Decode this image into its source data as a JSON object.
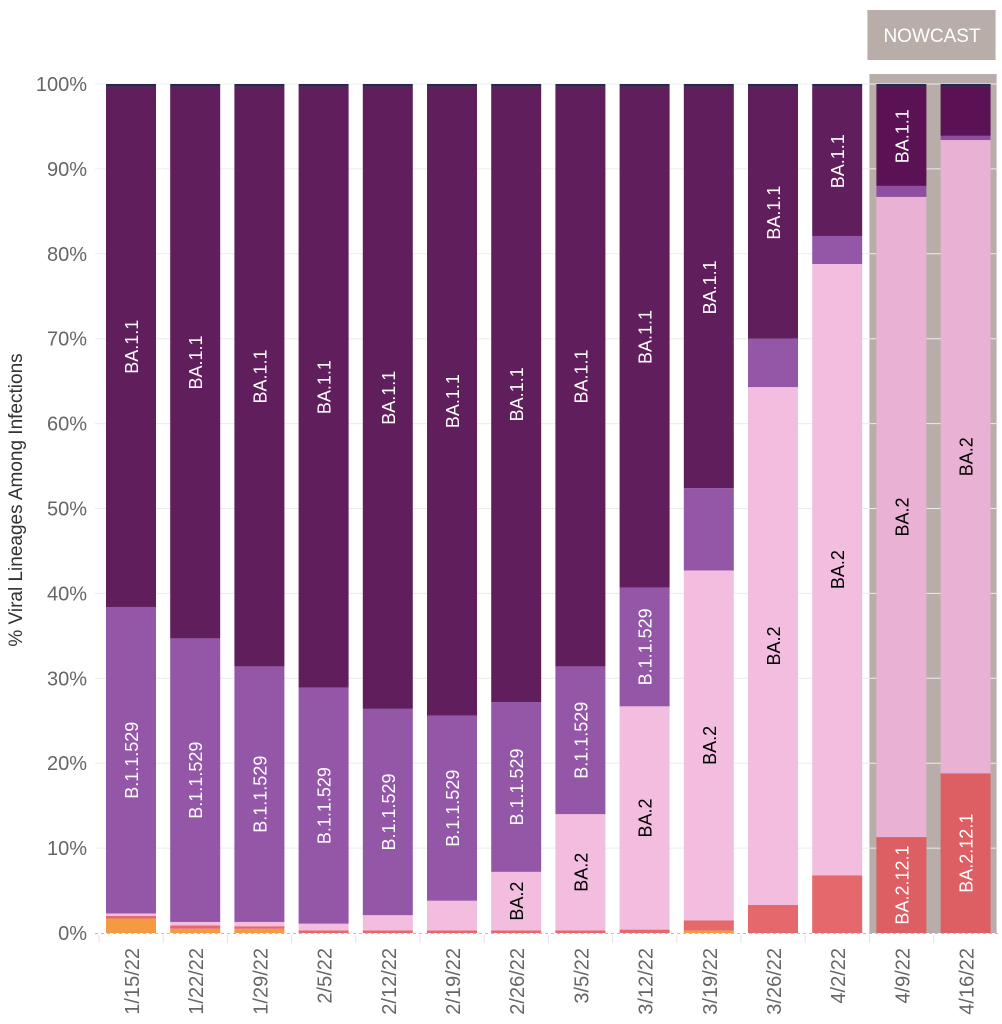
{
  "chart_data": {
    "type": "bar",
    "stacked": true,
    "title": "",
    "xlabel": "",
    "ylabel": "% Viral Lineages Among Infections",
    "ylim": [
      0,
      100
    ],
    "y_ticks": [
      "0%",
      "10%",
      "20%",
      "30%",
      "40%",
      "50%",
      "60%",
      "70%",
      "80%",
      "90%",
      "100%"
    ],
    "grid": true,
    "categories": [
      "1/15/22",
      "1/22/22",
      "1/29/22",
      "2/5/22",
      "2/12/22",
      "2/19/22",
      "2/26/22",
      "3/5/22",
      "3/12/22",
      "3/19/22",
      "3/26/22",
      "4/2/22",
      "4/9/22",
      "4/16/22"
    ],
    "nowcast": {
      "label": "NOWCAST",
      "categories": [
        "4/9/22",
        "4/16/22"
      ],
      "color": "#b9ada9"
    },
    "series": [
      {
        "name": "Other (orange)",
        "color": "#f39a43",
        "label_color": "#ffffff",
        "values": [
          1.7,
          0.5,
          0.5,
          0.0,
          0.0,
          0.0,
          0.0,
          0.0,
          0.0,
          0.3,
          0.0,
          0.0,
          0.0,
          0.0
        ],
        "labels": [
          "",
          "",
          "",
          "",
          "",
          "",
          "",
          "",
          "",
          "",
          "",
          "",
          "",
          ""
        ]
      },
      {
        "name": "BA.2.12.1",
        "color": "#e4686c",
        "label_color": "#ffffff",
        "values": [
          0.3,
          0.4,
          0.3,
          0.3,
          0.3,
          0.3,
          0.3,
          0.3,
          0.4,
          1.2,
          3.3,
          6.8,
          11.3,
          18.8
        ],
        "labels": [
          "",
          "",
          "",
          "",
          "",
          "",
          "",
          "",
          "",
          "",
          "",
          "",
          "BA.2.12.1",
          "BA.2.12.1"
        ]
      },
      {
        "name": "BA.2",
        "color": "#f2bddf",
        "label_color": "#000000",
        "values": [
          0.3,
          0.4,
          0.5,
          0.8,
          1.8,
          3.5,
          6.9,
          13.7,
          26.3,
          41.2,
          61.0,
          72.0,
          75.4,
          74.6
        ],
        "labels": [
          "",
          "",
          "",
          "",
          "",
          "",
          "BA.2",
          "BA.2",
          "BA.2",
          "BA.2",
          "BA.2",
          "BA.2",
          "BA.2",
          "BA.2"
        ]
      },
      {
        "name": "B.1.1.529",
        "color": "#9457a8",
        "label_color": "#ffffff",
        "values": [
          36.1,
          33.4,
          30.1,
          27.8,
          24.3,
          21.8,
          20.0,
          17.4,
          14.0,
          9.7,
          5.7,
          3.3,
          1.3,
          0.5
        ],
        "labels": [
          "B.1.1.529",
          "B.1.1.529",
          "B.1.1.529",
          "B.1.1.529",
          "B.1.1.529",
          "B.1.1.529",
          "B.1.1.529",
          "B.1.1.529",
          "B.1.1.529",
          "",
          "",
          "",
          "",
          ""
        ]
      },
      {
        "name": "BA.1.1",
        "color": "#611e5c",
        "label_color": "#ffffff",
        "values": [
          61.3,
          65.0,
          68.3,
          70.8,
          73.3,
          74.1,
          72.5,
          68.3,
          59.0,
          47.3,
          29.7,
          17.6,
          11.7,
          5.8
        ],
        "labels": [
          "BA.1.1",
          "BA.1.1",
          "BA.1.1",
          "BA.1.1",
          "BA.1.1",
          "BA.1.1",
          "BA.1.1",
          "BA.1.1",
          "BA.1.1",
          "BA.1.1",
          "BA.1.1",
          "BA.1.1",
          "BA.1.1",
          ""
        ]
      },
      {
        "name": "Other (navy)",
        "color": "#26294d",
        "label_color": "#ffffff",
        "values": [
          0.3,
          0.3,
          0.3,
          0.3,
          0.3,
          0.3,
          0.3,
          0.3,
          0.3,
          0.3,
          0.3,
          0.3,
          0.3,
          0.3
        ],
        "labels": [
          "",
          "",
          "",
          "",
          "",
          "",
          "",
          "",
          "",
          "",
          "",
          "",
          "",
          ""
        ]
      }
    ],
    "nowcast_series_colors": {
      "BA.2.12.1": "#dd5e63",
      "BA.2": "#e9b1d4",
      "B.1.1.529": "#8f4ea0",
      "BA.1.1": "#5a1254"
    },
    "legend": "none"
  }
}
